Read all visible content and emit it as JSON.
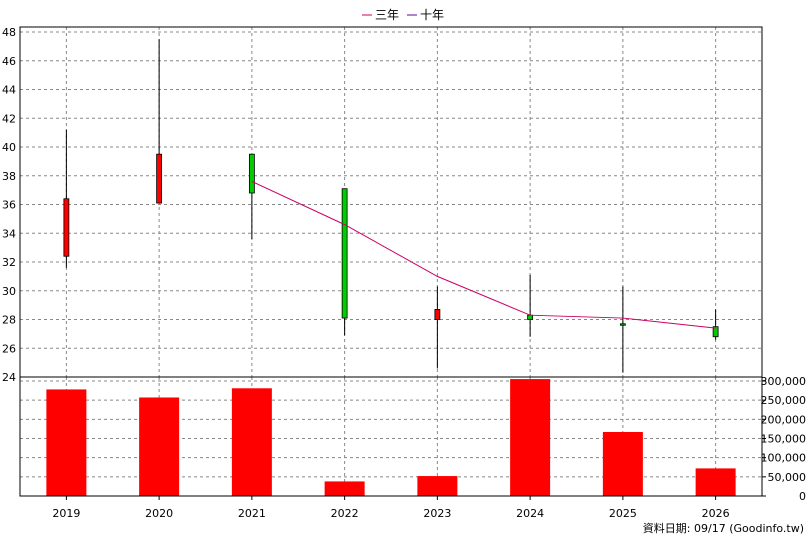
{
  "legend": {
    "three_year": "三年",
    "ten_year": "十年"
  },
  "footer": {
    "label": "資料日期: 09/17 (Goodinfo.tw)"
  },
  "colors": {
    "up_candle": "#ff0000",
    "down_candle": "#00cc00",
    "volume_bar": "#ff0000",
    "ma_line": "#cc0066",
    "grid": "#888888"
  },
  "chart_data": [
    {
      "type": "candlestick",
      "categories": [
        "2019",
        "2020",
        "2021",
        "2022",
        "2023",
        "2024",
        "2025",
        "2026"
      ],
      "ylim": [
        24,
        48
      ],
      "yticks": [
        24,
        26,
        28,
        30,
        32,
        34,
        36,
        38,
        40,
        42,
        44,
        46,
        48
      ],
      "grid": true,
      "candles": [
        {
          "open": 32.4,
          "close": 36.4,
          "high": 41.2,
          "low": 31.6
        },
        {
          "open": 36.1,
          "close": 39.5,
          "high": 47.5,
          "low": 36.1
        },
        {
          "open": 39.5,
          "close": 36.8,
          "high": 39.5,
          "low": 33.6
        },
        {
          "open": 37.1,
          "close": 28.1,
          "high": 37.1,
          "low": 26.9
        },
        {
          "open": 28.0,
          "close": 28.7,
          "high": 30.3,
          "low": 24.6
        },
        {
          "open": 28.3,
          "close": 28.0,
          "high": 31.1,
          "low": 26.8
        },
        {
          "open": 27.7,
          "close": 27.6,
          "high": 30.3,
          "low": 24.3
        },
        {
          "open": 27.5,
          "close": 26.8,
          "high": 28.7,
          "low": 26.6
        }
      ],
      "series": [
        {
          "name": "十年",
          "x": [
            "2021",
            "2022",
            "2023",
            "2024",
            "2025",
            "2026"
          ],
          "values": [
            37.6,
            34.6,
            31.0,
            28.3,
            28.1,
            27.4
          ]
        }
      ]
    },
    {
      "type": "bar",
      "categories": [
        "2019",
        "2020",
        "2021",
        "2022",
        "2023",
        "2024",
        "2025",
        "2026"
      ],
      "values": [
        278000,
        257000,
        281000,
        38000,
        52000,
        305000,
        167000,
        72000
      ],
      "ylim": [
        0,
        300000
      ],
      "yticks": [
        0,
        50000,
        100000,
        150000,
        200000,
        250000,
        300000
      ],
      "ytick_labels": [
        "0",
        "50,000",
        "100,000",
        "150,000",
        "200,000",
        "250,000",
        "300,000"
      ],
      "grid": true
    }
  ]
}
